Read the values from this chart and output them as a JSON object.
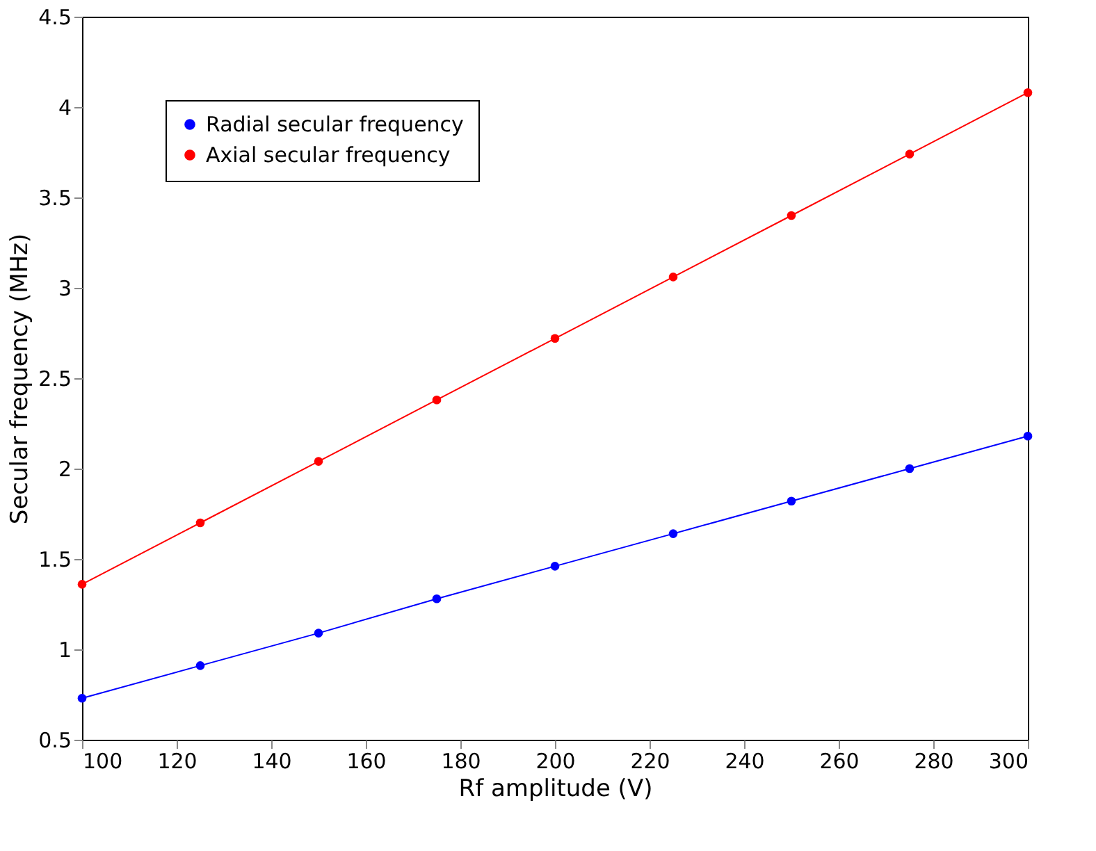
{
  "chart_data": {
    "type": "line",
    "xlabel": "Rf amplitude (V)",
    "ylabel": "Secular frequency (MHz)",
    "x": [
      100,
      125,
      150,
      175,
      200,
      225,
      250,
      275,
      300
    ],
    "series": [
      {
        "name": "Radial secular frequency",
        "color": "#0000ff",
        "values": [
          0.73,
          0.91,
          1.09,
          1.28,
          1.46,
          1.64,
          1.82,
          2.0,
          2.18
        ]
      },
      {
        "name": "Axial secular frequency",
        "color": "#ff0000",
        "values": [
          1.36,
          1.7,
          2.04,
          2.38,
          2.72,
          3.06,
          3.4,
          3.74,
          4.08
        ]
      }
    ],
    "xlim": [
      100,
      300
    ],
    "xticks": [
      100,
      120,
      140,
      160,
      180,
      200,
      220,
      240,
      260,
      280,
      300
    ],
    "ylim": [
      0.5,
      4.5
    ],
    "yticks": [
      0.5,
      1,
      1.5,
      2,
      2.5,
      3,
      3.5,
      4,
      4.5
    ],
    "grid": false,
    "legend": "top left",
    "marker": "circle",
    "line_style": "solid"
  }
}
